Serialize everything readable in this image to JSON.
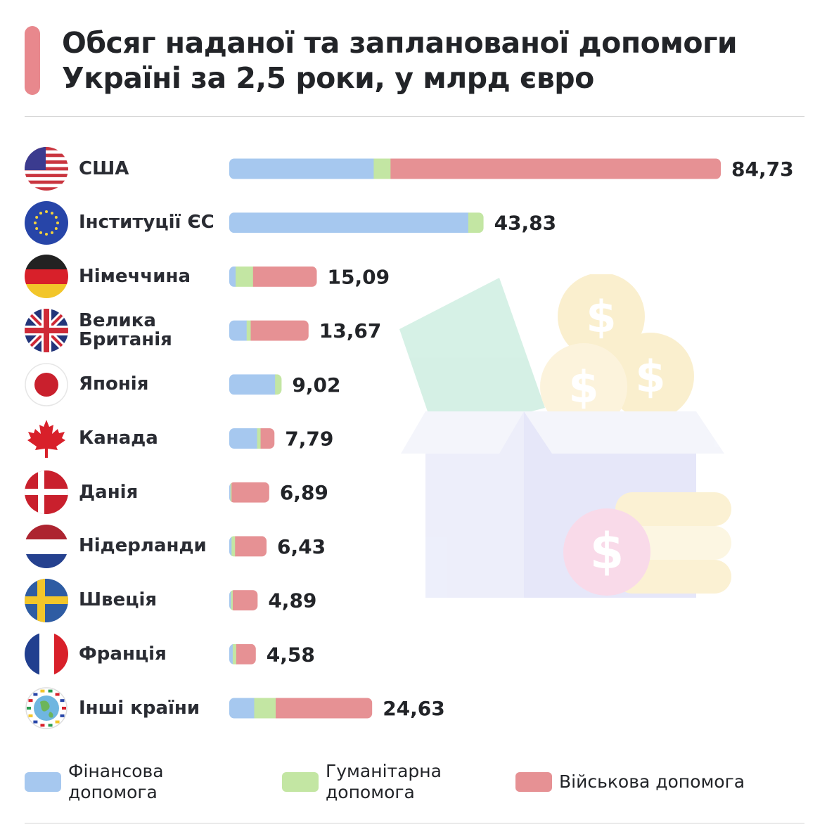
{
  "title_lines": [
    "Обсяг наданої та запланованої допомоги",
    "Україні за 2,5 роки, у млрд євро"
  ],
  "colors": {
    "accent": "#e8888d",
    "financial": "#a6c8ef",
    "humanitarian": "#c3e6a3",
    "military": "#e69194"
  },
  "chart_data": {
    "type": "bar",
    "orientation": "horizontal",
    "stacked": true,
    "title": "Обсяг наданої та запланованої допомоги Україні за 2,5 роки, у млрд євро",
    "categories": [
      "США",
      "Інституції ЄС",
      "Німеччина",
      "Велика Британія",
      "Японія",
      "Канада",
      "Данія",
      "Нідерланди",
      "Швеція",
      "Франція",
      "Інші країни"
    ],
    "category_lines": [
      [
        "США"
      ],
      [
        "Інституції ЄС"
      ],
      [
        "Німеччина"
      ],
      [
        "Велика",
        "Британія"
      ],
      [
        "Японія"
      ],
      [
        "Канада"
      ],
      [
        "Данія"
      ],
      [
        "Нідерланди"
      ],
      [
        "Швеція"
      ],
      [
        "Франція"
      ],
      [
        "Інші країни"
      ]
    ],
    "flags": [
      "us-flag-icon",
      "eu-flag-icon",
      "germany-flag-icon",
      "uk-flag-icon",
      "japan-flag-icon",
      "canada-flag-icon",
      "denmark-flag-icon",
      "netherlands-flag-icon",
      "sweden-flag-icon",
      "france-flag-icon",
      "globe-flags-icon"
    ],
    "totals": [
      84.73,
      43.83,
      15.09,
      13.67,
      9.02,
      7.79,
      6.89,
      6.43,
      4.89,
      4.58,
      24.63
    ],
    "total_labels": [
      "84,73",
      "43,83",
      "15,09",
      "13,67",
      "9,02",
      "7,79",
      "6,89",
      "6,43",
      "4,89",
      "4,58",
      "24,63"
    ],
    "series": [
      {
        "name": "Фінансова допомога",
        "color": "#a6c8ef",
        "values": [
          24.9,
          41.2,
          1.1,
          3.0,
          7.9,
          4.8,
          0.2,
          0.4,
          0.3,
          0.6,
          4.3
        ]
      },
      {
        "name": "Гуманітарна допомога",
        "color": "#c3e6a3",
        "values": [
          2.9,
          2.63,
          3.0,
          0.7,
          1.12,
          0.6,
          0.2,
          0.6,
          0.3,
          0.6,
          3.7
        ]
      },
      {
        "name": "Військова допомога",
        "color": "#e69194",
        "values": [
          56.93,
          0.0,
          10.99,
          9.97,
          0.0,
          2.39,
          6.49,
          5.43,
          4.29,
          3.38,
          16.63
        ]
      }
    ],
    "legend": [
      {
        "lines": [
          "Фінансова",
          "допомога"
        ],
        "color": "#a6c8ef"
      },
      {
        "lines": [
          "Гуманітарна",
          "допомога"
        ],
        "color": "#c3e6a3"
      },
      {
        "lines": [
          "Військова допомога"
        ],
        "color": "#e69194"
      }
    ],
    "xlim": [
      0,
      84.73
    ],
    "grid": false
  }
}
